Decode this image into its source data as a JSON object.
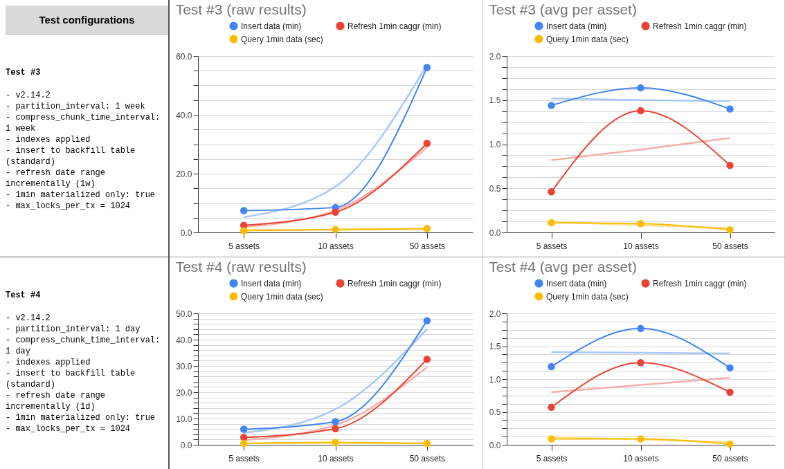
{
  "chart_data": [
    {
      "type": "other",
      "title": "Test configurations",
      "subtitle": "Test #3",
      "annotations": [
        "- v2.14.2",
        "- partition_interval: 1 week",
        "- compress_chunk_time_interval: 1 week",
        "- indexes applied",
        "- insert to backfill table (standard)",
        "- refresh date range incrementally (1w)",
        "- 1min materialized only: true",
        "- max_locks_per_tx = 1024"
      ]
    },
    {
      "type": "line",
      "title": "Test #3 (raw results)",
      "categories": [
        "5 assets",
        "10 assets",
        "50 assets"
      ],
      "marker": "circle",
      "legend": "top",
      "grid": true,
      "ylim": [
        0,
        60
      ],
      "yticks": [
        {
          "value": 0,
          "label": "0.0"
        },
        {
          "value": 5,
          "label": null
        },
        {
          "value": 10,
          "label": null
        },
        {
          "value": 15,
          "label": null
        },
        {
          "value": 20,
          "label": "20.0"
        },
        {
          "value": 25,
          "label": null
        },
        {
          "value": 30,
          "label": null
        },
        {
          "value": 35,
          "label": null
        },
        {
          "value": 40,
          "label": "40.0"
        },
        {
          "value": 45,
          "label": null
        },
        {
          "value": 50,
          "label": null
        },
        {
          "value": 55,
          "label": null
        },
        {
          "value": 60,
          "label": "60.0"
        }
      ],
      "series": [
        {
          "type": "line",
          "marker": "none",
          "color": "#a8c7fa",
          "values": [
            5.2,
            15.6,
            57
          ]
        },
        {
          "type": "line",
          "marker": "none",
          "color": "#f6aea9",
          "values": [
            1.8,
            7.5,
            29
          ]
        },
        {
          "type": "line",
          "marker": "none",
          "color": "#fde293",
          "values": [
            0.9,
            0.9,
            1.0
          ]
        },
        {
          "name": "Insert data (min)",
          "color": "#4285f4",
          "values": [
            7.4,
            8.5,
            56.1
          ]
        },
        {
          "name": "Refresh 1min caggr (min)",
          "color": "#ea4335",
          "values": [
            2.4,
            6.9,
            30.3
          ]
        },
        {
          "name": "Query 1min data (sec)",
          "color": "#fbbc04",
          "values": [
            0.6,
            1.0,
            1.3
          ]
        }
      ]
    },
    {
      "type": "line",
      "title": "Test #3 (avg per asset)",
      "categories": [
        "5 assets",
        "10 assets",
        "50 assets"
      ],
      "marker": "circle",
      "legend": "top",
      "grid": true,
      "ylim": [
        0,
        2
      ],
      "yticks": [
        {
          "value": 0,
          "label": "0.0"
        },
        {
          "value": 0.125,
          "label": null
        },
        {
          "value": 0.25,
          "label": null
        },
        {
          "value": 0.375,
          "label": null
        },
        {
          "value": 0.5,
          "label": "0.5"
        },
        {
          "value": 0.625,
          "label": null
        },
        {
          "value": 0.75,
          "label": null
        },
        {
          "value": 0.875,
          "label": null
        },
        {
          "value": 1,
          "label": "1.0"
        },
        {
          "value": 1.125,
          "label": null
        },
        {
          "value": 1.25,
          "label": null
        },
        {
          "value": 1.375,
          "label": null
        },
        {
          "value": 1.5,
          "label": "1.5"
        },
        {
          "value": 1.625,
          "label": null
        },
        {
          "value": 1.75,
          "label": null
        },
        {
          "value": 1.875,
          "label": null
        },
        {
          "value": 2,
          "label": "2.0"
        }
      ],
      "series": [
        {
          "type": "line",
          "marker": "none",
          "color": "#a8c7fa",
          "values": [
            1.52,
            1.5,
            1.49
          ]
        },
        {
          "type": "line",
          "marker": "none",
          "color": "#f6aea9",
          "values": [
            0.82,
            0.94,
            1.07
          ]
        },
        {
          "type": "line",
          "marker": "none",
          "color": "#fde293",
          "values": [
            0.12,
            0.08,
            0.05
          ]
        },
        {
          "name": "Insert data (min)",
          "color": "#4285f4",
          "values": [
            1.44,
            1.64,
            1.4
          ]
        },
        {
          "name": "Refresh 1min caggr (min)",
          "color": "#ea4335",
          "values": [
            0.46,
            1.38,
            0.76
          ]
        },
        {
          "name": "Query 1min data (sec)",
          "color": "#fbbc04",
          "values": [
            0.11,
            0.1,
            0.03
          ]
        }
      ]
    },
    {
      "type": "other",
      "title": "Test #4",
      "annotations": [
        "- v2.14.2",
        "- partition_interval: 1 day",
        "- compress_chunk_time_interval: 1 day",
        "- indexes applied",
        "- insert to backfill table (standard)",
        "- refresh date range incrementally (1d)",
        "- 1min materialized only: true",
        "- max_locks_per_tx = 1024"
      ]
    },
    {
      "type": "line",
      "title": "Test #4 (raw results)",
      "categories": [
        "5 assets",
        "10 assets",
        "50 assets"
      ],
      "marker": "circle",
      "legend": "top",
      "grid": true,
      "ylim": [
        0,
        50
      ],
      "yticks": [
        {
          "value": 0,
          "label": "0.0"
        },
        {
          "value": 2,
          "label": null
        },
        {
          "value": 4,
          "label": null
        },
        {
          "value": 6,
          "label": null
        },
        {
          "value": 8,
          "label": null
        },
        {
          "value": 10,
          "label": "10.0"
        },
        {
          "value": 12,
          "label": null
        },
        {
          "value": 14,
          "label": null
        },
        {
          "value": 16,
          "label": null
        },
        {
          "value": 18,
          "label": null
        },
        {
          "value": 20,
          "label": "20.0"
        },
        {
          "value": 22,
          "label": null
        },
        {
          "value": 24,
          "label": null
        },
        {
          "value": 26,
          "label": null
        },
        {
          "value": 28,
          "label": null
        },
        {
          "value": 30,
          "label": "30.0"
        },
        {
          "value": 32,
          "label": null
        },
        {
          "value": 34,
          "label": null
        },
        {
          "value": 36,
          "label": null
        },
        {
          "value": 38,
          "label": null
        },
        {
          "value": 40,
          "label": "40.0"
        },
        {
          "value": 42,
          "label": null
        },
        {
          "value": 44,
          "label": null
        },
        {
          "value": 46,
          "label": null
        },
        {
          "value": 48,
          "label": null
        },
        {
          "value": 50,
          "label": "50.0"
        }
      ],
      "series": [
        {
          "type": "line",
          "marker": "none",
          "color": "#a8c7fa",
          "values": [
            4.5,
            13.5,
            44
          ]
        },
        {
          "type": "line",
          "marker": "none",
          "color": "#f6aea9",
          "values": [
            1.8,
            7.5,
            29.5
          ]
        },
        {
          "type": "line",
          "marker": "none",
          "color": "#fde293",
          "values": [
            0.6,
            0.6,
            0.7
          ]
        },
        {
          "name": "Insert data (min)",
          "color": "#4285f4",
          "values": [
            5.9,
            8.8,
            47.2
          ]
        },
        {
          "name": "Refresh 1min caggr (min)",
          "color": "#ea4335",
          "values": [
            2.8,
            6.1,
            32.5
          ]
        },
        {
          "name": "Query 1min data (sec)",
          "color": "#fbbc04",
          "values": [
            0.5,
            0.9,
            0.5
          ]
        }
      ]
    },
    {
      "type": "line",
      "title": "Test #4 (avg per asset)",
      "categories": [
        "5 assets",
        "10 assets",
        "50 assets"
      ],
      "marker": "circle",
      "legend": "top",
      "grid": true,
      "ylim": [
        0,
        2
      ],
      "yticks": [
        {
          "value": 0,
          "label": "0.0"
        },
        {
          "value": 0.125,
          "label": null
        },
        {
          "value": 0.25,
          "label": null
        },
        {
          "value": 0.375,
          "label": null
        },
        {
          "value": 0.5,
          "label": "0.5"
        },
        {
          "value": 0.625,
          "label": null
        },
        {
          "value": 0.75,
          "label": null
        },
        {
          "value": 0.875,
          "label": null
        },
        {
          "value": 1,
          "label": "1.0"
        },
        {
          "value": 1.125,
          "label": null
        },
        {
          "value": 1.25,
          "label": null
        },
        {
          "value": 1.375,
          "label": null
        },
        {
          "value": 1.5,
          "label": "1.5"
        },
        {
          "value": 1.625,
          "label": null
        },
        {
          "value": 1.75,
          "label": null
        },
        {
          "value": 1.875,
          "label": null
        },
        {
          "value": 2,
          "label": "2.0"
        }
      ],
      "series": [
        {
          "type": "line",
          "marker": "none",
          "color": "#a8c7fa",
          "values": [
            1.41,
            1.4,
            1.39
          ]
        },
        {
          "type": "line",
          "marker": "none",
          "color": "#f6aea9",
          "values": [
            0.8,
            0.91,
            1.02
          ]
        },
        {
          "type": "line",
          "marker": "none",
          "color": "#fde293",
          "values": [
            0.12,
            0.08,
            0.04
          ]
        },
        {
          "name": "Insert data (min)",
          "color": "#4285f4",
          "values": [
            1.19,
            1.77,
            1.17
          ]
        },
        {
          "name": "Refresh 1min caggr (min)",
          "color": "#ea4335",
          "values": [
            0.57,
            1.25,
            0.8
          ]
        },
        {
          "name": "Query 1min data (sec)",
          "color": "#fbbc04",
          "values": [
            0.09,
            0.09,
            0.01
          ]
        }
      ]
    }
  ]
}
